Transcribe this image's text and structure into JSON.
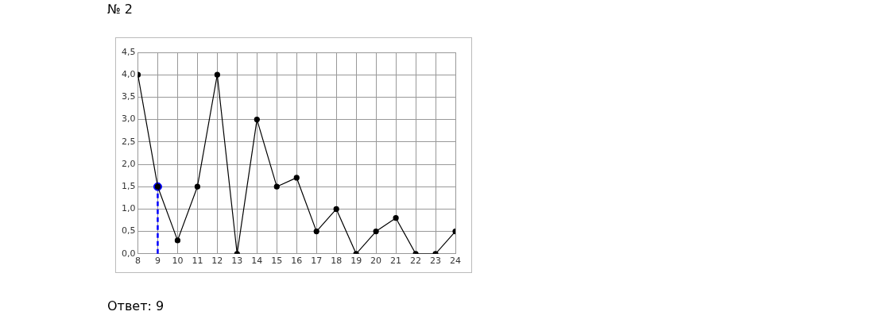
{
  "chart_data": {
    "type": "line",
    "title": "№ 2",
    "annotations": [
      "Ответ: 9"
    ],
    "x": [
      8,
      9,
      10,
      11,
      12,
      13,
      14,
      15,
      16,
      17,
      18,
      19,
      20,
      21,
      22,
      23,
      24
    ],
    "series": [
      {
        "type": "line",
        "color": "#000000",
        "marker": "circle",
        "line_style": "solid",
        "values": [
          4.0,
          1.5,
          0.3,
          1.5,
          4.0,
          0,
          3.0,
          1.5,
          1.7,
          0.5,
          1.0,
          0,
          0.5,
          0.8,
          0,
          0,
          0.5
        ]
      },
      {
        "type": "line",
        "color": "#0000ff",
        "marker": "none",
        "line_style": "dashed",
        "x": [
          9,
          9
        ],
        "values": [
          0,
          1.5
        ]
      },
      {
        "type": "scatter",
        "color": "#0000ff",
        "marker": "circle",
        "values": [
          null,
          1.5,
          null,
          null,
          null,
          null,
          null,
          null,
          null,
          null,
          null,
          null,
          null,
          null,
          null,
          null,
          null
        ]
      }
    ],
    "xlim": [
      8,
      24
    ],
    "xticks": [
      8,
      9,
      10,
      11,
      12,
      13,
      14,
      15,
      16,
      17,
      18,
      19,
      20,
      21,
      22,
      23,
      24
    ],
    "ylim": [
      0,
      4.5
    ],
    "yticks": [
      {
        "value": 0,
        "label": "0,0"
      },
      {
        "value": 0.5,
        "label": "0,5"
      },
      {
        "value": 1,
        "label": "1,0"
      },
      {
        "value": 1.5,
        "label": "1,5"
      },
      {
        "value": 2,
        "label": "2,0"
      },
      {
        "value": 2.5,
        "label": "2,5"
      },
      {
        "value": 3,
        "label": "3,0"
      },
      {
        "value": 3.5,
        "label": "3,5"
      },
      {
        "value": 4,
        "label": "4,0"
      },
      {
        "value": 4.5,
        "label": "4,5"
      }
    ],
    "grid": true,
    "legend": false
  }
}
